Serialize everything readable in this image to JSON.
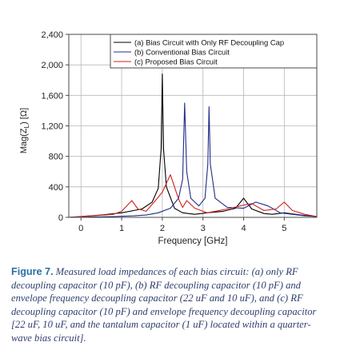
{
  "chart_data": {
    "type": "line",
    "xlabel": "Frequency [GHz]",
    "ylabel": "Mag(Z_L) [Ω]",
    "ylabel_main": "Mag(Z",
    "ylabel_sub": "L",
    "ylabel_tail": ") [Ω]",
    "xlim": [
      -0.3,
      5.8
    ],
    "ylim": [
      0,
      2400
    ],
    "xticks": [
      {
        "value": 0,
        "label": "0"
      },
      {
        "value": 1,
        "label": "1"
      },
      {
        "value": 2,
        "label": "2"
      },
      {
        "value": 3,
        "label": "3"
      },
      {
        "value": 4,
        "label": "4"
      },
      {
        "value": 5,
        "label": "5"
      }
    ],
    "yticks": [
      {
        "value": 0,
        "label": "0"
      },
      {
        "value": 400,
        "label": "400"
      },
      {
        "value": 800,
        "label": "800"
      },
      {
        "value": 1200,
        "label": "1,200"
      },
      {
        "value": 1600,
        "label": "1,600"
      },
      {
        "value": 2000,
        "label": "2,000"
      },
      {
        "value": 2400,
        "label": "2,400"
      }
    ],
    "grid": true,
    "legend_position": "top-right",
    "series": [
      {
        "name": "(a) Bias Circuit with Only RF Decoupling Cap",
        "color": "#000000",
        "x": [
          -0.3,
          0.5,
          1.0,
          1.5,
          1.75,
          1.9,
          1.97,
          2.0,
          2.03,
          2.1,
          2.3,
          2.5,
          2.8,
          3.1,
          3.5,
          3.8,
          4.0,
          4.2,
          4.5,
          4.7,
          5.0,
          5.4,
          5.8
        ],
        "y": [
          0,
          30,
          60,
          110,
          200,
          380,
          900,
          1880,
          900,
          400,
          120,
          60,
          40,
          60,
          80,
          120,
          250,
          110,
          50,
          40,
          60,
          30,
          10
        ]
      },
      {
        "name": "(b) Conventional Bias Circuit",
        "color": "#202c8a",
        "x": [
          -0.3,
          0.8,
          1.3,
          1.6,
          1.9,
          2.2,
          2.4,
          2.5,
          2.55,
          2.6,
          2.7,
          2.9,
          3.05,
          3.12,
          3.15,
          3.18,
          3.3,
          3.6,
          4.0,
          4.3,
          4.6,
          4.9,
          5.2,
          5.5,
          5.8
        ],
        "y": [
          0,
          10,
          20,
          30,
          60,
          120,
          250,
          500,
          1500,
          600,
          250,
          150,
          250,
          700,
          1450,
          700,
          250,
          130,
          120,
          200,
          150,
          60,
          40,
          20,
          10
        ]
      },
      {
        "name": "(c) Proposed Bias Circuit",
        "color": "#d02020",
        "x": [
          -0.3,
          0.3,
          0.8,
          1.0,
          1.25,
          1.4,
          1.6,
          1.8,
          2.0,
          2.2,
          2.4,
          2.5,
          2.6,
          2.8,
          3.0,
          3.1,
          3.3,
          3.6,
          4.0,
          4.2,
          4.5,
          4.8,
          5.0,
          5.2,
          5.5,
          5.8
        ],
        "y": [
          0,
          20,
          40,
          80,
          220,
          110,
          80,
          200,
          330,
          560,
          240,
          130,
          220,
          120,
          80,
          60,
          80,
          110,
          160,
          180,
          90,
          110,
          200,
          90,
          40,
          10
        ]
      }
    ]
  },
  "caption": {
    "label": "Figure 7.",
    "text": " Measured load impedances of each bias circuit: (a) only RF decoupling capacitor (10 pF), (b) RF decoupling capacitor (10 pF) and envelope frequency decoupling capacitor (22 uF and 10 uF), and (c) RF decoupling capacitor (10 pF) and envelope frequency decoupling capacitor [22 uF, 10 uF, and the tantalum capacitor (1 uF) located within a quarter-wave bias circuit]."
  }
}
